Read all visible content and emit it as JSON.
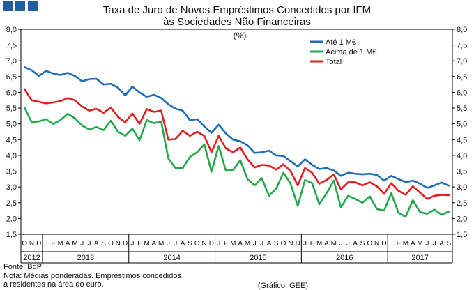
{
  "header_squares": [
    "#1f5fa0",
    "#1f5fa0",
    "#1f5fa0"
  ],
  "title_line1": "Taxa de Juro de Novos Empréstimos Concedidos por IFM",
  "title_line2": "às Sociedades Não Financeiras",
  "units": "(%)",
  "source": "Fonte: BdP",
  "note_line1": "Nota: Médias ponderadas. Empréstimos concedidos",
  "note_line2": "a residentes na área do euro.",
  "credit": "(Gráfico: GEE)",
  "chart_data": {
    "type": "line",
    "title": "Taxa de Juro de Novos Empréstimos Concedidos por IFM às Sociedades Não Financeiras",
    "ylabel": "(%)",
    "ylim": [
      1.5,
      8.0
    ],
    "ytick_step": 0.5,
    "y_ticks_left": [
      "8,0",
      "7,5",
      "7,0",
      "6,5",
      "6,0",
      "5,5",
      "5,0",
      "4,5",
      "4,0",
      "3,5",
      "3,0",
      "2,5",
      "2,0",
      "1,5"
    ],
    "y_ticks_right": [
      "8,0",
      "7,5",
      "7,0",
      "6,5",
      "6,0",
      "5,5",
      "5,0",
      "4,5",
      "4,0",
      "3,5",
      "3,0",
      "2,5",
      "2,0",
      "1,5"
    ],
    "grid": false,
    "legend_position": "top-right",
    "month_labels": [
      "O",
      "N",
      "D",
      "J",
      "F",
      "M",
      "A",
      "M",
      "J",
      "J",
      "A",
      "S",
      "O",
      "N",
      "D",
      "J",
      "F",
      "M",
      "A",
      "M",
      "J",
      "J",
      "A",
      "S",
      "O",
      "N",
      "D",
      "J",
      "F",
      "M",
      "A",
      "M",
      "J",
      "J",
      "A",
      "S",
      "O",
      "N",
      "D",
      "J",
      "F",
      "M",
      "A",
      "M",
      "J",
      "J",
      "A",
      "S",
      "O",
      "N",
      "D",
      "J",
      "F",
      "M",
      "A",
      "M",
      "J",
      "J",
      "A",
      "S"
    ],
    "year_labels": [
      {
        "label": "2012",
        "start": 0,
        "end": 2
      },
      {
        "label": "2013",
        "start": 3,
        "end": 14
      },
      {
        "label": "2014",
        "start": 15,
        "end": 26
      },
      {
        "label": "2015",
        "start": 27,
        "end": 38
      },
      {
        "label": "2016",
        "start": 39,
        "end": 50
      },
      {
        "label": "2017",
        "start": 51,
        "end": 59
      }
    ],
    "series": [
      {
        "name": "Até 1 M€",
        "color": "#1f6db5",
        "values": [
          6.8,
          6.7,
          6.52,
          6.68,
          6.6,
          6.55,
          6.62,
          6.52,
          6.35,
          6.42,
          6.43,
          6.25,
          6.27,
          6.15,
          5.9,
          6.18,
          6.0,
          5.86,
          5.92,
          5.82,
          5.62,
          5.48,
          5.42,
          5.12,
          5.15,
          4.92,
          4.72,
          4.97,
          4.7,
          4.5,
          4.45,
          4.32,
          4.08,
          4.1,
          4.15,
          4.0,
          3.98,
          3.82,
          3.65,
          3.88,
          3.7,
          3.57,
          3.6,
          3.52,
          3.35,
          3.45,
          3.42,
          3.4,
          3.42,
          3.38,
          3.2,
          3.35,
          3.25,
          3.15,
          3.2,
          3.1,
          2.97,
          3.05,
          3.14,
          3.04
        ]
      },
      {
        "name": "Acima de 1 M€",
        "color": "#22a84a",
        "values": [
          5.52,
          5.05,
          5.08,
          5.15,
          5.0,
          5.12,
          5.32,
          5.18,
          4.95,
          4.82,
          4.9,
          4.8,
          5.1,
          4.75,
          4.62,
          4.85,
          4.48,
          5.12,
          5.02,
          5.08,
          3.9,
          3.6,
          3.6,
          3.95,
          4.1,
          4.35,
          3.48,
          4.3,
          3.52,
          3.53,
          3.85,
          3.25,
          3.05,
          3.28,
          2.72,
          2.95,
          3.45,
          3.1,
          2.4,
          3.22,
          3.12,
          2.45,
          2.8,
          3.2,
          2.35,
          2.72,
          2.62,
          2.5,
          2.7,
          2.3,
          2.25,
          2.8,
          2.18,
          2.05,
          2.58,
          2.2,
          2.15,
          2.28,
          2.12,
          2.22
        ]
      },
      {
        "name": "Total",
        "color": "#e02020",
        "values": [
          6.1,
          5.75,
          5.7,
          5.65,
          5.68,
          5.72,
          5.82,
          5.75,
          5.55,
          5.42,
          5.48,
          5.35,
          5.52,
          5.22,
          5.05,
          5.33,
          5.0,
          5.47,
          5.38,
          5.42,
          4.5,
          4.52,
          4.78,
          4.62,
          4.75,
          4.62,
          4.1,
          4.62,
          4.22,
          4.1,
          4.25,
          3.88,
          3.62,
          3.7,
          3.68,
          3.55,
          3.72,
          3.5,
          3.05,
          3.6,
          3.45,
          3.1,
          3.22,
          3.4,
          2.92,
          3.15,
          3.15,
          3.05,
          3.15,
          3.02,
          2.78,
          3.12,
          2.88,
          2.75,
          3.02,
          2.82,
          2.62,
          2.72,
          2.75,
          2.74
        ]
      }
    ]
  }
}
